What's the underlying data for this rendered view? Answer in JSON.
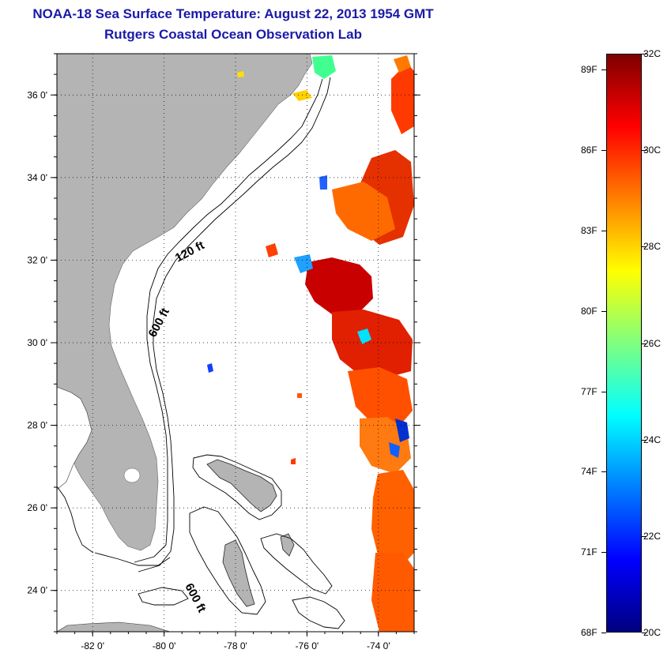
{
  "title": {
    "line1": "NOAA-18 Sea Surface Temperature:  August 22, 2013 1954 GMT",
    "line2": "Rutgers Coastal Ocean Observation Lab"
  },
  "map": {
    "lon_range": [
      -83,
      -73
    ],
    "lat_range": [
      23,
      37
    ],
    "x_ticks": [
      {
        "lon": -82,
        "label": "-82 0'"
      },
      {
        "lon": -80,
        "label": "-80 0'"
      },
      {
        "lon": -78,
        "label": "-78 0'"
      },
      {
        "lon": -76,
        "label": "-76 0'"
      },
      {
        "lon": -74,
        "label": "-74 0'"
      }
    ],
    "y_ticks": [
      {
        "lat": 24,
        "label": "24 0'"
      },
      {
        "lat": 26,
        "label": "26 0'"
      },
      {
        "lat": 28,
        "label": "28 0'"
      },
      {
        "lat": 30,
        "label": "30 0'"
      },
      {
        "lat": 32,
        "label": "32 0'"
      },
      {
        "lat": 34,
        "label": "34 0'"
      },
      {
        "lat": 36,
        "label": "36 0'"
      }
    ],
    "contour_labels": {
      "c120_north": "120 ft",
      "c600_north": "600 ft",
      "c600_south": "600 ft"
    },
    "colors": {
      "land": "#b4b4b4",
      "ocean": "#ffffff",
      "grid": "#000000"
    }
  },
  "colorbar": {
    "celsius_range": [
      20,
      32
    ],
    "fahrenheit_labels": [
      "89F",
      "86F",
      "83F",
      "80F",
      "77F",
      "74F",
      "71F",
      "68F"
    ],
    "celsius_labels": [
      "32C",
      "30C",
      "28C",
      "26C",
      "24C",
      "22C",
      "20C"
    ],
    "stops": [
      "#00007f",
      "#0000ff",
      "#007fff",
      "#00ffff",
      "#7fff7f",
      "#ffff00",
      "#ff7f00",
      "#ff0000",
      "#7f0000"
    ]
  }
}
